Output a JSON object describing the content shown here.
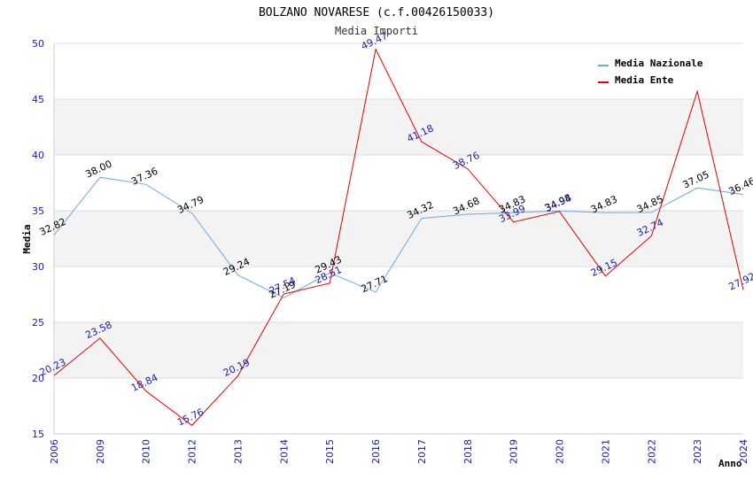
{
  "chart_data": {
    "type": "line",
    "title": "BOLZANO NOVARESE (c.f.00426150033)",
    "subtitle": "Media Importi",
    "xlabel": "Anno",
    "ylabel": "Media",
    "ylim": [
      15,
      50
    ],
    "yticks": [
      15,
      20,
      25,
      30,
      35,
      40,
      45,
      50
    ],
    "categories": [
      "2006",
      "2009",
      "2010",
      "2012",
      "2013",
      "2014",
      "2015",
      "2016",
      "2017",
      "2018",
      "2019",
      "2020",
      "2021",
      "2022",
      "2023",
      "2024"
    ],
    "series": [
      {
        "name": "Media Nazionale",
        "color": "#6fa8dc",
        "values": [
          32.82,
          38.0,
          37.36,
          34.79,
          29.24,
          27.19,
          29.43,
          27.71,
          34.32,
          34.68,
          34.83,
          34.98,
          34.83,
          34.85,
          37.05,
          36.46
        ],
        "labels": [
          "32.82",
          "38.00",
          "37.36",
          "34.79",
          "29.24",
          "27.19",
          "29.43",
          "27.71",
          "34.32",
          "34.68",
          "34.83",
          "34.98",
          "34.83",
          "34.85",
          "37.05",
          "36.46"
        ]
      },
      {
        "name": "Media Ente",
        "color": "#e00000",
        "values": [
          20.23,
          23.58,
          18.84,
          15.76,
          20.19,
          27.54,
          28.51,
          49.47,
          41.18,
          38.76,
          33.99,
          34.94,
          29.15,
          32.74,
          45.7,
          27.92
        ],
        "labels": [
          "20.23",
          "23.58",
          "18.84",
          "15.76",
          "20.19",
          "27.54",
          "28.51",
          "49.47",
          "41.18",
          "38.76",
          "33.99",
          "34.94",
          "29.15",
          "32.74",
          "",
          "27.92"
        ]
      }
    ],
    "legend": "top-right",
    "grid": true
  }
}
